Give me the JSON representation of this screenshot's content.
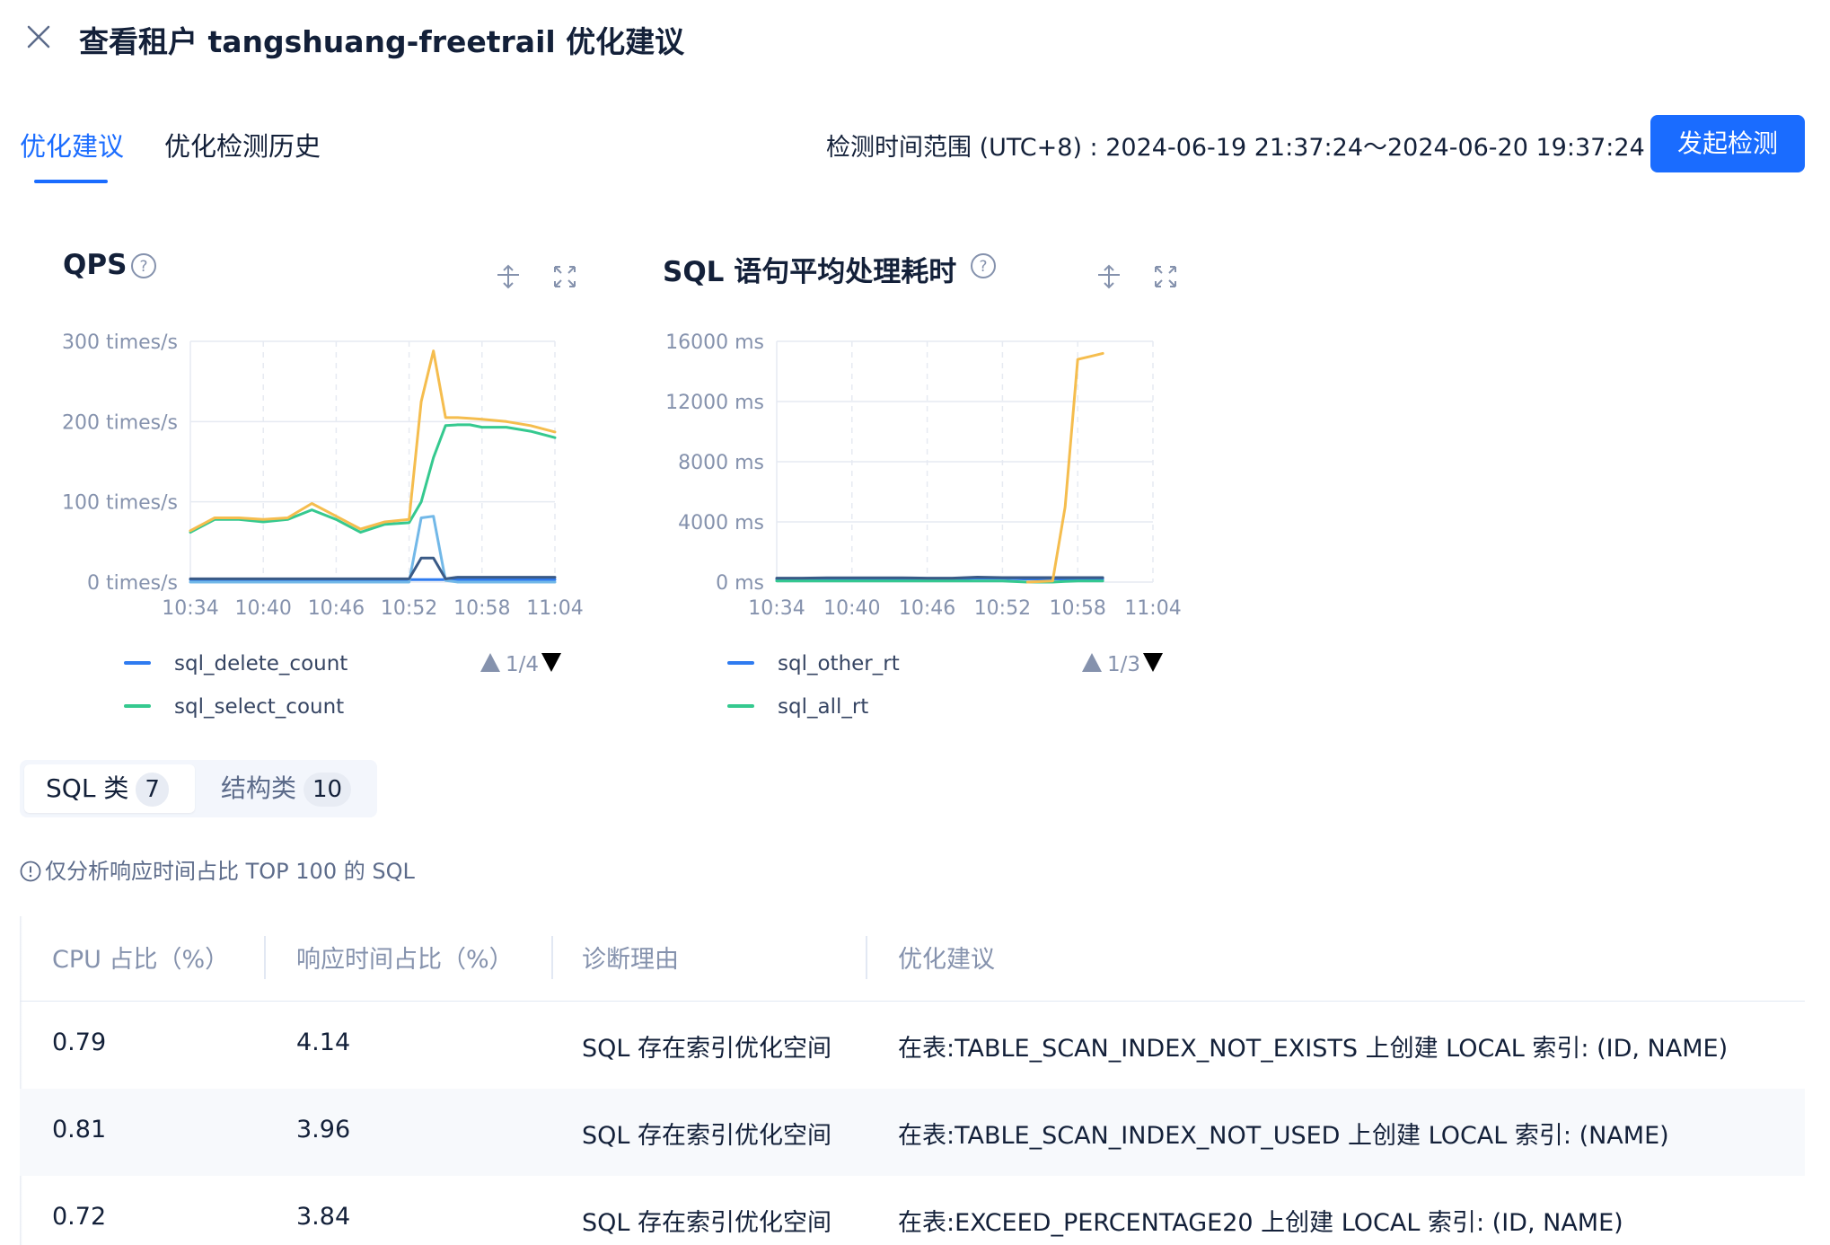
{
  "header": {
    "title": "查看租户 tangshuang-freetrail 优化建议",
    "close_icon": "close-icon"
  },
  "tabs": [
    {
      "label": "优化建议",
      "active": true
    },
    {
      "label": "优化检测历史",
      "active": false
    }
  ],
  "time_range": "检测时间范围 (UTC+8) : 2024-06-19 21:37:24～2024-06-20 19:37:24",
  "primary_button": "发起检测",
  "colors": {
    "accent": "#1a6cff",
    "series_orange": "#f5bd4e",
    "series_green": "#35c98f",
    "series_lightblue": "#72b8e8",
    "series_darkblue": "#3a5a86",
    "series_blue": "#2f7bf0"
  },
  "chart_data": [
    {
      "type": "line",
      "title": "QPS",
      "x": [
        "10:34",
        "10:36",
        "10:38",
        "10:40",
        "10:42",
        "10:44",
        "10:46",
        "10:48",
        "10:50",
        "10:52",
        "10:53",
        "10:54",
        "10:55",
        "10:56",
        "10:57",
        "10:58",
        "11:00",
        "11:02",
        "11:04"
      ],
      "x_ticks": [
        "10:34",
        "10:40",
        "10:46",
        "10:52",
        "10:58",
        "11:04"
      ],
      "y_ticks": [
        "0 times/s",
        "100 times/s",
        "200 times/s",
        "300 times/s"
      ],
      "ylim": [
        0,
        300
      ],
      "series": [
        {
          "name": "sql_delete_count",
          "color": "#2f7bf0",
          "values": [
            3,
            3,
            3,
            3,
            3,
            3,
            3,
            3,
            3,
            3,
            3,
            3,
            3,
            3,
            3,
            3,
            3,
            3,
            3
          ]
        },
        {
          "name": "sql_select_count",
          "color": "#35c98f",
          "values": [
            62,
            78,
            78,
            75,
            78,
            90,
            78,
            62,
            72,
            74,
            100,
            155,
            195,
            196,
            196,
            193,
            193,
            188,
            180
          ]
        },
        {
          "series_color_only": true,
          "color": "#f5bd4e",
          "values": [
            64,
            80,
            80,
            78,
            80,
            98,
            82,
            66,
            75,
            78,
            225,
            288,
            205,
            205,
            204,
            203,
            200,
            195,
            187
          ]
        },
        {
          "series_color_only": true,
          "color": "#72b8e8",
          "values": [
            0,
            0,
            0,
            0,
            0,
            0,
            0,
            0,
            0,
            0,
            80,
            82,
            2,
            0,
            0,
            0,
            0,
            0,
            0
          ]
        },
        {
          "series_color_only": true,
          "color": "#3a5a86",
          "values": [
            4,
            4,
            4,
            4,
            4,
            4,
            4,
            4,
            4,
            4,
            30,
            30,
            4,
            6,
            6,
            6,
            6,
            6,
            6
          ]
        }
      ],
      "legend": {
        "items": [
          "sql_delete_count",
          "sql_select_count"
        ],
        "page": "1/4"
      }
    },
    {
      "type": "line",
      "title": "SQL 语句平均处理耗时",
      "x": [
        "10:34",
        "10:36",
        "10:38",
        "10:40",
        "10:42",
        "10:44",
        "10:46",
        "10:48",
        "10:50",
        "10:52",
        "10:54",
        "10:56",
        "10:57",
        "10:58",
        "10:59",
        "11:00"
      ],
      "x_ticks": [
        "10:34",
        "10:40",
        "10:46",
        "10:52",
        "10:58",
        "11:04"
      ],
      "y_ticks": [
        "0 ms",
        "4000 ms",
        "8000 ms",
        "12000 ms",
        "16000 ms"
      ],
      "ylim": [
        0,
        16000
      ],
      "series": [
        {
          "name": "sql_other_rt",
          "color": "#2f7bf0",
          "values": [
            180,
            180,
            200,
            200,
            200,
            200,
            180,
            200,
            260,
            250,
            200,
            200,
            200,
            200,
            200,
            200
          ]
        },
        {
          "name": "sql_all_rt",
          "color": "#35c98f",
          "values": [
            80,
            80,
            80,
            80,
            80,
            80,
            80,
            80,
            80,
            80,
            0,
            0,
            40,
            80,
            80,
            80
          ]
        },
        {
          "series_color_only": true,
          "color": "#3a5a86",
          "values": [
            260,
            260,
            280,
            280,
            280,
            280,
            260,
            260,
            330,
            300,
            300,
            300,
            300,
            300,
            300,
            300
          ]
        },
        {
          "series_color_only": true,
          "color": "#f5bd4e",
          "values": [
            null,
            null,
            null,
            null,
            null,
            null,
            null,
            null,
            null,
            null,
            0,
            80,
            5000,
            14800,
            15000,
            15200
          ]
        }
      ],
      "legend": {
        "items": [
          "sql_other_rt",
          "sql_all_rt"
        ],
        "page": "1/3"
      }
    }
  ],
  "segmented": [
    {
      "label": "SQL 类",
      "count": "7",
      "active": true
    },
    {
      "label": "结构类",
      "count": "10",
      "active": false
    }
  ],
  "note": "仅分析响应时间占比 TOP 100 的 SQL",
  "table": {
    "columns": [
      "CPU 占比（%）",
      "响应时间占比（%）",
      "诊断理由",
      "优化建议"
    ],
    "rows": [
      [
        "0.79",
        "4.14",
        "SQL 存在索引优化空间",
        "在表:TABLE_SCAN_INDEX_NOT_EXISTS 上创建 LOCAL 索引: (ID, NAME)"
      ],
      [
        "0.81",
        "3.96",
        "SQL 存在索引优化空间",
        "在表:TABLE_SCAN_INDEX_NOT_USED 上创建 LOCAL 索引: (NAME)"
      ],
      [
        "0.72",
        "3.84",
        "SQL 存在索引优化空间",
        "在表:EXCEED_PERCENTAGE20 上创建 LOCAL 索引: (ID, NAME)"
      ]
    ]
  }
}
